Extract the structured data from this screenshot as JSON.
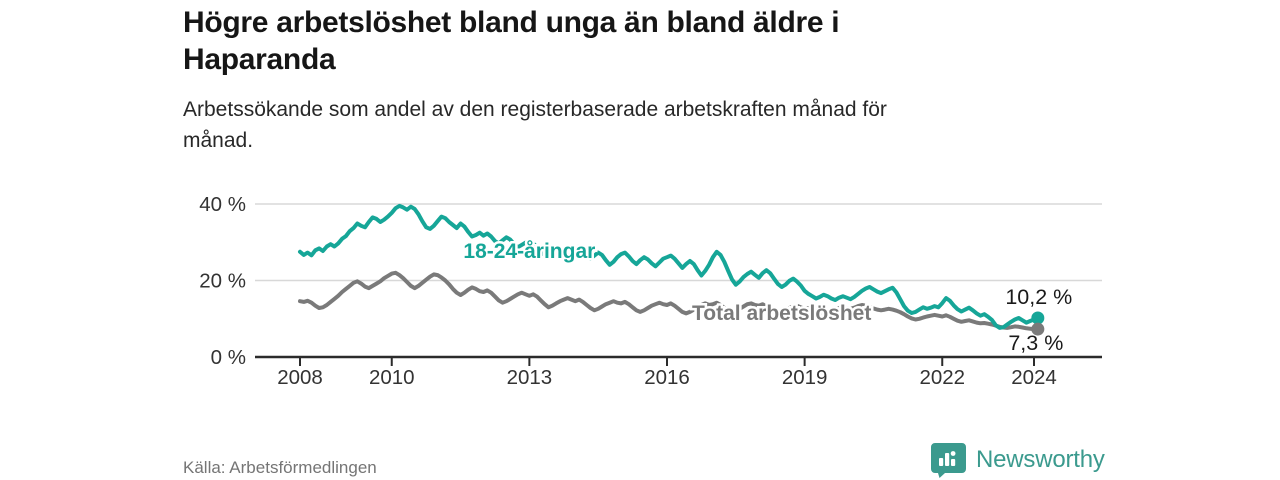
{
  "header": {
    "title": "Högre arbetslöshet bland unga än bland äldre i Haparanda",
    "subtitle": "Arbetssökande som andel av den registerbaserade arbetskraften månad för månad."
  },
  "footer": {
    "source": "Källa: Arbetsförmedlingen",
    "brand": "Newsworthy",
    "brand_icon": "newsworthy-speech-bubble-bar-chart-icon"
  },
  "colors": {
    "youth_line": "#16a698",
    "total_line": "#7a7a7a",
    "grid": "#d8d8d8",
    "axis": "#2b2b2b",
    "tick_text": "#333333",
    "value_text": "#1a1a1a",
    "brand": "#3b9a8e"
  },
  "chart_data": {
    "type": "line",
    "title": "Högre arbetslöshet bland unga än bland äldre i Haparanda",
    "subtitle": "Arbetssökande som andel av den registerbaserade arbetskraften månad för månad.",
    "x_unit": "year-month",
    "x_start": 2008.0,
    "x_step": 0.0833333,
    "xlim": [
      2007.0,
      2025.5
    ],
    "ylim": [
      0,
      42
    ],
    "grid": "horizontal-only",
    "legend_position": "inline-labels",
    "xticks": [
      {
        "value": 2008,
        "label": "2008"
      },
      {
        "value": 2010,
        "label": "2010"
      },
      {
        "value": 2013,
        "label": "2013"
      },
      {
        "value": 2016,
        "label": "2016"
      },
      {
        "value": 2019,
        "label": "2019"
      },
      {
        "value": 2022,
        "label": "2022"
      },
      {
        "value": 2024,
        "label": "2024"
      }
    ],
    "yticks": [
      {
        "value": 0,
        "label": "0 %"
      },
      {
        "value": 20,
        "label": "20 %"
      },
      {
        "value": 40,
        "label": "40 %"
      }
    ],
    "series": [
      {
        "name": "18-24-åringar",
        "color": "#16a698",
        "end_label": "10,2 %",
        "end_value": 10.2,
        "label_pos": {
          "x": 2013.0,
          "y": 27.7
        },
        "end_label_offset": {
          "dx": 1,
          "dy": -14
        },
        "values": [
          27.5,
          26.7,
          27.3,
          26.6,
          27.9,
          28.4,
          27.7,
          28.9,
          29.5,
          28.9,
          29.7,
          30.9,
          31.6,
          32.9,
          33.7,
          34.9,
          34.3,
          33.9,
          35.3,
          36.5,
          36.1,
          35.3,
          35.9,
          36.7,
          37.7,
          38.9,
          39.5,
          39.1,
          38.5,
          39.3,
          38.7,
          37.3,
          35.5,
          33.9,
          33.5,
          34.3,
          35.5,
          36.7,
          36.3,
          35.3,
          34.5,
          33.7,
          34.9,
          34.1,
          32.7,
          31.5,
          31.9,
          32.5,
          31.7,
          32.3,
          31.5,
          30.3,
          29.7,
          30.5,
          31.3,
          30.7,
          29.5,
          28.7,
          29.3,
          29.9,
          29.1,
          29.7,
          28.7,
          27.5,
          26.7,
          27.7,
          28.5,
          27.9,
          26.5,
          25.9,
          26.7,
          27.3,
          28.3,
          28.9,
          28.1,
          26.9,
          25.7,
          26.5,
          27.3,
          26.7,
          25.3,
          24.1,
          24.9,
          26.1,
          26.9,
          27.3,
          26.3,
          25.1,
          24.3,
          25.3,
          26.1,
          25.5,
          24.5,
          23.7,
          24.7,
          25.7,
          26.1,
          26.5,
          25.7,
          24.5,
          23.3,
          24.3,
          25.1,
          24.3,
          22.7,
          21.3,
          22.5,
          24.1,
          26.1,
          27.5,
          26.7,
          24.9,
          22.5,
          20.3,
          18.9,
          19.7,
          20.9,
          21.7,
          22.3,
          21.5,
          20.7,
          21.9,
          22.7,
          21.9,
          20.5,
          19.1,
          18.3,
          18.9,
          19.9,
          20.5,
          19.7,
          18.7,
          17.3,
          16.5,
          15.9,
          15.3,
          15.7,
          16.3,
          15.9,
          15.3,
          14.9,
          15.5,
          15.9,
          15.5,
          15.1,
          15.7,
          16.5,
          17.3,
          17.9,
          18.3,
          17.7,
          17.1,
          16.7,
          17.2,
          17.7,
          18.1,
          16.9,
          15.1,
          13.3,
          12.1,
          11.5,
          11.8,
          12.4,
          13.0,
          12.6,
          12.9,
          13.3,
          13.0,
          14.1,
          15.4,
          14.7,
          13.5,
          12.5,
          11.9,
          12.4,
          12.9,
          12.2,
          11.4,
          10.8,
          11.2,
          10.5,
          9.7,
          8.3,
          7.6,
          7.8,
          8.5,
          9.2,
          9.8,
          10.2,
          9.6,
          9.0,
          9.4,
          9.8,
          10.2
        ]
      },
      {
        "name": "Total arbetslöshet",
        "color": "#7a7a7a",
        "end_label": "7,3 %",
        "end_value": 7.3,
        "label_pos": {
          "x": 2018.5,
          "y": 11.5
        },
        "end_label_offset": {
          "dx": -2,
          "dy": 21
        },
        "values": [
          14.6,
          14.4,
          14.7,
          14.2,
          13.4,
          12.8,
          13.0,
          13.6,
          14.4,
          15.2,
          16.0,
          17.0,
          17.8,
          18.6,
          19.4,
          19.8,
          19.2,
          18.4,
          18.0,
          18.6,
          19.2,
          19.8,
          20.6,
          21.2,
          21.8,
          22.0,
          21.4,
          20.6,
          19.6,
          18.6,
          18.0,
          18.6,
          19.4,
          20.2,
          21.0,
          21.6,
          21.4,
          20.8,
          20.0,
          19.0,
          17.8,
          16.8,
          16.2,
          16.8,
          17.6,
          18.2,
          17.8,
          17.2,
          17.0,
          17.4,
          16.8,
          15.8,
          14.8,
          14.2,
          14.6,
          15.2,
          15.8,
          16.4,
          16.8,
          16.4,
          16.0,
          16.4,
          15.8,
          14.8,
          13.8,
          13.0,
          13.4,
          14.0,
          14.6,
          15.0,
          15.4,
          15.0,
          14.6,
          15.0,
          14.4,
          13.6,
          12.8,
          12.2,
          12.6,
          13.2,
          13.8,
          14.2,
          14.6,
          14.2,
          14.0,
          14.4,
          13.8,
          13.0,
          12.2,
          11.8,
          12.2,
          12.8,
          13.4,
          13.8,
          14.2,
          13.8,
          13.6,
          14.0,
          13.4,
          12.6,
          11.8,
          11.4,
          11.8,
          12.4,
          13.0,
          13.6,
          14.0,
          13.6,
          13.8,
          14.2,
          13.6,
          12.8,
          12.0,
          11.6,
          12.0,
          12.6,
          13.2,
          13.8,
          14.0,
          13.6,
          13.4,
          13.8,
          13.2,
          12.4,
          11.6,
          11.2,
          11.6,
          12.2,
          12.8,
          13.2,
          13.4,
          13.0,
          12.6,
          12.8,
          12.4,
          11.8,
          11.2,
          11.0,
          11.4,
          12.0,
          12.4,
          12.8,
          13.0,
          12.8,
          12.6,
          12.9,
          13.3,
          13.6,
          13.4,
          13.0,
          12.7,
          12.4,
          12.2,
          12.4,
          12.6,
          12.4,
          12.1,
          11.7,
          11.2,
          10.6,
          10.1,
          9.8,
          10.0,
          10.3,
          10.6,
          10.8,
          11.0,
          10.8,
          10.6,
          10.9,
          10.5,
          10.0,
          9.5,
          9.2,
          9.4,
          9.6,
          9.3,
          9.0,
          8.8,
          8.9,
          8.7,
          8.5,
          8.2,
          7.9,
          7.7,
          7.6,
          7.8,
          8.0,
          7.9,
          7.7,
          7.5,
          7.4,
          7.3,
          7.3
        ]
      }
    ]
  }
}
